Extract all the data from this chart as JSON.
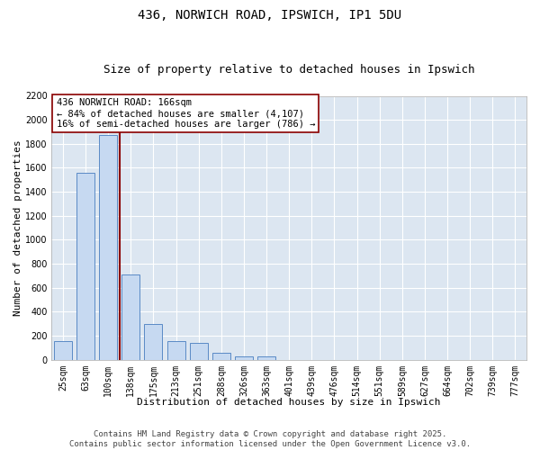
{
  "title": "436, NORWICH ROAD, IPSWICH, IP1 5DU",
  "subtitle": "Size of property relative to detached houses in Ipswich",
  "xlabel": "Distribution of detached houses by size in Ipswich",
  "ylabel": "Number of detached properties",
  "bar_color": "#c6d9f1",
  "bar_edge_color": "#5a8ac6",
  "background_color": "#dce6f1",
  "grid_color": "#ffffff",
  "vline_color": "#8b0000",
  "categories": [
    "25sqm",
    "63sqm",
    "100sqm",
    "138sqm",
    "175sqm",
    "213sqm",
    "251sqm",
    "288sqm",
    "326sqm",
    "363sqm",
    "401sqm",
    "439sqm",
    "476sqm",
    "514sqm",
    "551sqm",
    "589sqm",
    "627sqm",
    "664sqm",
    "702sqm",
    "739sqm",
    "777sqm"
  ],
  "values": [
    155,
    1560,
    1870,
    710,
    295,
    155,
    140,
    60,
    30,
    25,
    0,
    0,
    0,
    0,
    0,
    0,
    0,
    0,
    0,
    0,
    0
  ],
  "ylim": [
    0,
    2200
  ],
  "yticks": [
    0,
    200,
    400,
    600,
    800,
    1000,
    1200,
    1400,
    1600,
    1800,
    2000,
    2200
  ],
  "vline_index": 2.5,
  "annotation_text": "436 NORWICH ROAD: 166sqm\n← 84% of detached houses are smaller (4,107)\n16% of semi-detached houses are larger (786) →",
  "annotation_box_color": "#ffffff",
  "annotation_box_edge": "#8b0000",
  "footer_line1": "Contains HM Land Registry data © Crown copyright and database right 2025.",
  "footer_line2": "Contains public sector information licensed under the Open Government Licence v3.0.",
  "title_fontsize": 10,
  "subtitle_fontsize": 9,
  "axis_label_fontsize": 8,
  "tick_fontsize": 7,
  "annotation_fontsize": 7.5,
  "footer_fontsize": 6.5
}
